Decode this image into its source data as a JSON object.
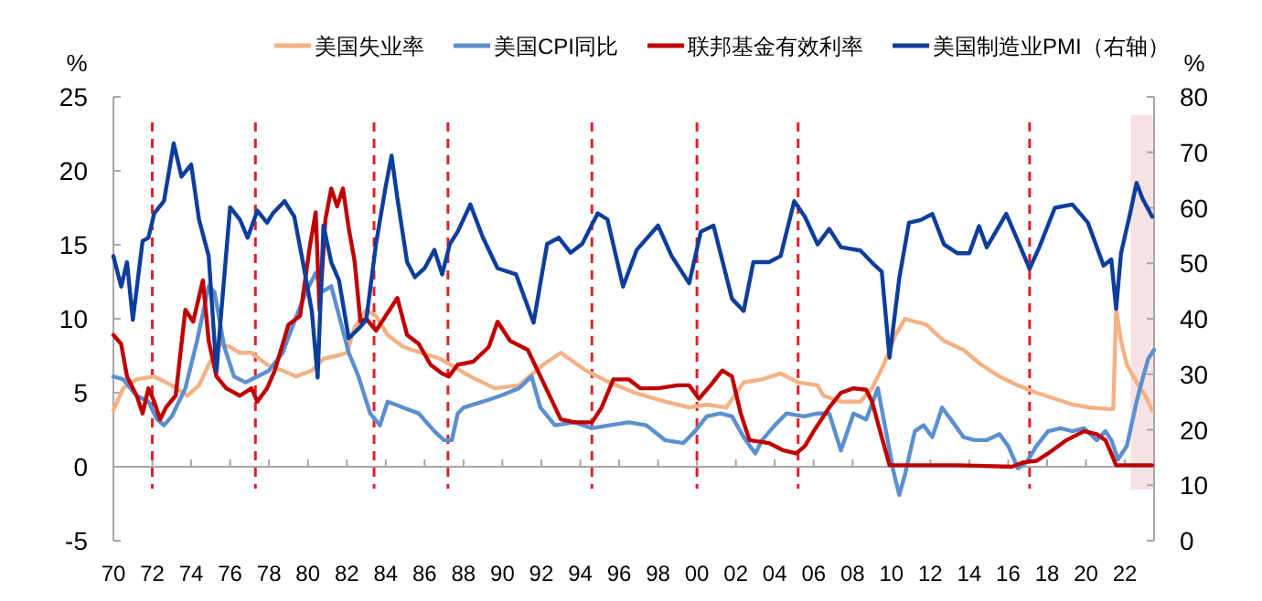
{
  "chart_data": {
    "type": "line",
    "ylabel": "%",
    "y2label": "%",
    "legend": "top",
    "xlim": [
      1970,
      2023.5
    ],
    "xticks": [
      {
        "value": 1970,
        "label": "70"
      },
      {
        "value": 1972,
        "label": "72"
      },
      {
        "value": 1974,
        "label": "74"
      },
      {
        "value": 1976,
        "label": "76"
      },
      {
        "value": 1978,
        "label": "78"
      },
      {
        "value": 1980,
        "label": "80"
      },
      {
        "value": 1982,
        "label": "82"
      },
      {
        "value": 1984,
        "label": "84"
      },
      {
        "value": 1986,
        "label": "86"
      },
      {
        "value": 1988,
        "label": "88"
      },
      {
        "value": 1990,
        "label": "90"
      },
      {
        "value": 1992,
        "label": "92"
      },
      {
        "value": 1994,
        "label": "94"
      },
      {
        "value": 1996,
        "label": "96"
      },
      {
        "value": 1998,
        "label": "98"
      },
      {
        "value": 2000,
        "label": "00"
      },
      {
        "value": 2002,
        "label": "02"
      },
      {
        "value": 2004,
        "label": "04"
      },
      {
        "value": 2006,
        "label": "06"
      },
      {
        "value": 2008,
        "label": "08"
      },
      {
        "value": 2010,
        "label": "10"
      },
      {
        "value": 2012,
        "label": "12"
      },
      {
        "value": 2014,
        "label": "14"
      },
      {
        "value": 2016,
        "label": "16"
      },
      {
        "value": 2018,
        "label": "18"
      },
      {
        "value": 2020,
        "label": "20"
      },
      {
        "value": 2022,
        "label": "22"
      }
    ],
    "ylim": [
      -5,
      25
    ],
    "yticks": [
      -5,
      0,
      5,
      10,
      15,
      20,
      25
    ],
    "y2lim": [
      0,
      80
    ],
    "y2ticks": [
      0,
      10,
      20,
      30,
      40,
      50,
      60,
      70,
      80
    ],
    "ref_lines": [
      {
        "axis": "x",
        "value": 1972.0,
        "color": "#e0202a",
        "line_style": "dashed"
      },
      {
        "axis": "x",
        "value": 1977.3,
        "color": "#e0202a",
        "line_style": "dashed"
      },
      {
        "axis": "x",
        "value": 1983.4,
        "color": "#e0202a",
        "line_style": "dashed"
      },
      {
        "axis": "x",
        "value": 1987.2,
        "color": "#e0202a",
        "line_style": "dashed"
      },
      {
        "axis": "x",
        "value": 1994.6,
        "color": "#e0202a",
        "line_style": "dashed"
      },
      {
        "axis": "x",
        "value": 2000.0,
        "color": "#e0202a",
        "line_style": "dashed"
      },
      {
        "axis": "x",
        "value": 2005.2,
        "color": "#e0202a",
        "line_style": "dashed"
      },
      {
        "axis": "x",
        "value": 2017.1,
        "color": "#e0202a",
        "line_style": "dashed"
      }
    ],
    "bands": [
      {
        "axis": "x",
        "from": 2022.3,
        "to": 2023.5,
        "color": "#f6e1e4"
      }
    ],
    "series": [
      {
        "name": "美国失业率",
        "color": "#f4b183",
        "x": [
          1970,
          1970.5,
          1971.2,
          1972.1,
          1973,
          1973.8,
          1974.4,
          1974.9,
          1975.5,
          1976,
          1976.5,
          1977.1,
          1977.9,
          1978.7,
          1979.4,
          1980.2,
          1980.8,
          1981.5,
          1982,
          1982.4,
          1983,
          1983.5,
          1984.1,
          1984.9,
          1985.8,
          1986.8,
          1988.35,
          1989.6,
          1990.85,
          1992.1,
          1993.0,
          1994.3,
          1995.5,
          1996.8,
          1998.35,
          1999.6,
          2000.5,
          2001.5,
          2002.4,
          2003.35,
          2004.3,
          2005.2,
          2006.2,
          2006.5,
          2007.4,
          2008.4,
          2009,
          2009.6,
          2010.2,
          2010.7,
          2011.2,
          2011.8,
          2012.7,
          2013.7,
          2014.6,
          2015.55,
          2016.5,
          2017.45,
          2018.4,
          2019.3,
          2020.2,
          2021.2,
          2021.4,
          2021.55,
          2021.8,
          2022.1,
          2022.6,
          2023.05,
          2023.4
        ],
        "values": [
          3.8,
          5.3,
          5.9,
          6.1,
          5.5,
          4.8,
          5.5,
          6.9,
          8.3,
          8.1,
          7.7,
          7.7,
          6.9,
          6.5,
          6.1,
          6.5,
          7.3,
          7.5,
          7.7,
          9.4,
          10.6,
          10.2,
          8.9,
          8.1,
          7.7,
          7.3,
          6.1,
          5.3,
          5.5,
          6.9,
          7.7,
          6.5,
          5.7,
          5.0,
          4.4,
          4.0,
          4.2,
          4.0,
          5.7,
          5.9,
          6.3,
          5.7,
          5.5,
          4.8,
          4.4,
          4.4,
          5.3,
          6.9,
          8.9,
          10.0,
          9.8,
          9.6,
          8.5,
          7.9,
          6.9,
          6.1,
          5.5,
          5.0,
          4.6,
          4.2,
          4.0,
          3.9,
          3.9,
          10.6,
          8.5,
          6.9,
          5.7,
          4.8,
          3.8
        ]
      },
      {
        "name": "美国CPI同比",
        "color": "#5b8fd0",
        "x": [
          1970,
          1970.5,
          1971.2,
          1971.8,
          1972.25,
          1972.6,
          1973,
          1973.7,
          1974.3,
          1974.9,
          1975.2,
          1975.7,
          1976.2,
          1976.8,
          1977.4,
          1978,
          1978.7,
          1979.3,
          1979.9,
          1980.4,
          1980.7,
          1981.2,
          1981.6,
          1982.1,
          1982.6,
          1983.2,
          1983.7,
          1984.1,
          1984.9,
          1985.7,
          1986.5,
          1987,
          1987.4,
          1987.7,
          1988,
          1989,
          1989.9,
          1990.85,
          1991.5,
          1991.95,
          1992.7,
          1993.7,
          1994.6,
          1995.5,
          1996.5,
          1997.4,
          1998.35,
          1999.3,
          1999.9,
          2000.5,
          2001.2,
          2001.8,
          2002.4,
          2003.0,
          2003.35,
          2004,
          2004.6,
          2005.5,
          2006.2,
          2006.8,
          2007.4,
          2008.05,
          2008.7,
          2009.3,
          2009.6,
          2010.1,
          2010.4,
          2010.7,
          2011.2,
          2011.65,
          2012.1,
          2012.6,
          2013.05,
          2013.7,
          2014.3,
          2014.9,
          2015.55,
          2016,
          2016.5,
          2016.95,
          2017.45,
          2018.05,
          2018.7,
          2019.3,
          2019.9,
          2020.55,
          2021,
          2021.3,
          2021.65,
          2022.1,
          2022.6,
          2022.9,
          2023.2,
          2023.5
        ],
        "values": [
          6.1,
          5.9,
          4.8,
          4.4,
          3.2,
          2.8,
          3.4,
          5.3,
          8.5,
          12.2,
          11.8,
          8.1,
          6.1,
          5.7,
          6.1,
          6.5,
          7.7,
          9.8,
          11.8,
          13.1,
          11.8,
          12.2,
          10.2,
          7.7,
          6.1,
          3.6,
          2.8,
          4.4,
          4.0,
          3.6,
          2.4,
          1.8,
          1.8,
          3.6,
          4.0,
          4.4,
          4.8,
          5.3,
          6.1,
          4.0,
          2.8,
          3.0,
          2.6,
          2.8,
          3.0,
          2.8,
          1.8,
          1.6,
          2.4,
          3.4,
          3.6,
          3.4,
          2.0,
          0.9,
          1.8,
          2.8,
          3.6,
          3.4,
          3.6,
          3.6,
          1.1,
          3.6,
          3.2,
          5.3,
          3.2,
          -0.3,
          -1.9,
          -0.5,
          2.4,
          2.8,
          2.0,
          4.0,
          3.2,
          2.0,
          1.8,
          1.8,
          2.2,
          1.4,
          -0.1,
          0.3,
          1.4,
          2.4,
          2.6,
          2.4,
          2.6,
          1.8,
          2.4,
          1.8,
          0.5,
          1.4,
          4.4,
          5.9,
          7.3,
          7.9
        ]
      },
      {
        "name": "联邦基金有效利率",
        "color": "#c00000",
        "x": [
          1970,
          1970.4,
          1970.7,
          1971.2,
          1971.5,
          1971.8,
          1972.1,
          1972.4,
          1972.7,
          1973.2,
          1973.7,
          1974.1,
          1974.6,
          1974.9,
          1975.3,
          1975.8,
          1976.5,
          1977.1,
          1977.4,
          1977.9,
          1978.3,
          1979,
          1979.6,
          1980.1,
          1980.4,
          1980.6,
          1980.9,
          1981.2,
          1981.5,
          1981.8,
          1982.1,
          1982.4,
          1982.7,
          1983,
          1983.5,
          1984,
          1984.6,
          1985.1,
          1985.7,
          1986.3,
          1986.9,
          1987.25,
          1987.7,
          1988.5,
          1989.3,
          1989.75,
          1990.4,
          1991.3,
          1992.1,
          1993.0,
          1993.7,
          1994.6,
          1995.1,
          1995.7,
          1996.5,
          1997.1,
          1998.0,
          1999,
          1999.6,
          2000.1,
          2000.7,
          2001.3,
          2001.8,
          2002.25,
          2002.7,
          2003.7,
          2004.45,
          2005.1,
          2005.55,
          2006,
          2006.8,
          2007.4,
          2008.05,
          2008.7,
          2009,
          2009.5,
          2009.9,
          2010.9,
          2013.4,
          2016.2,
          2016.8,
          2017.45,
          2018.05,
          2019,
          2019.9,
          2020.55,
          2021,
          2021.3,
          2021.55,
          2023.05,
          2023.4
        ],
        "values": [
          8.9,
          8.3,
          6.1,
          4.8,
          3.6,
          5.3,
          4.4,
          3.2,
          4.0,
          4.8,
          10.6,
          9.8,
          12.6,
          8.5,
          6.1,
          5.3,
          4.8,
          5.3,
          4.4,
          5.3,
          6.5,
          9.6,
          10.2,
          14.9,
          17.2,
          10.6,
          16.7,
          18.8,
          17.6,
          18.8,
          16.1,
          13.9,
          9.8,
          10.0,
          9.2,
          10.2,
          11.4,
          8.9,
          8.3,
          6.9,
          6.3,
          6.1,
          6.9,
          7.1,
          8.1,
          9.8,
          8.5,
          7.9,
          5.7,
          3.2,
          3.0,
          3.0,
          4.0,
          5.9,
          5.9,
          5.3,
          5.3,
          5.5,
          5.5,
          4.6,
          5.5,
          6.5,
          6.1,
          3.6,
          1.8,
          1.6,
          1.1,
          0.9,
          1.4,
          2.4,
          4.0,
          5.0,
          5.3,
          5.2,
          4.4,
          2.0,
          0.1,
          0.1,
          0.1,
          0,
          0.3,
          0.4,
          0.9,
          1.8,
          2.4,
          2.2,
          1.8,
          0.9,
          0.1,
          0.1,
          0.1
        ]
      },
      {
        "name": "美国制造业PMI（右轴）",
        "color": "#0e3e9b",
        "axis": "y2",
        "x": [
          1970,
          1970.4,
          1970.7,
          1971,
          1971.5,
          1971.8,
          1972.1,
          1972.6,
          1973.1,
          1973.5,
          1974,
          1974.4,
          1974.9,
          1975.3,
          1975.5,
          1976,
          1976.5,
          1976.9,
          1977.4,
          1977.9,
          1978.2,
          1978.8,
          1979.3,
          1979.8,
          1980.2,
          1980.5,
          1980.8,
          1981.2,
          1981.6,
          1982.1,
          1982.6,
          1983,
          1983.5,
          1984,
          1984.3,
          1984.6,
          1985.1,
          1985.5,
          1986,
          1986.5,
          1986.9,
          1987.3,
          1987.7,
          1988.35,
          1989,
          1989.75,
          1990.7,
          1991.6,
          1992.3,
          1992.9,
          1993.5,
          1994.1,
          1994.9,
          1995.4,
          1996.2,
          1996.9,
          1998,
          1998.7,
          1999.6,
          2000.2,
          2000.85,
          2001.8,
          2002.4,
          2002.9,
          2003.7,
          2004.3,
          2005,
          2005.55,
          2006.2,
          2006.8,
          2007.4,
          2008.4,
          2009.15,
          2009.5,
          2009.9,
          2010.4,
          2010.9,
          2011.5,
          2012.1,
          2012.7,
          2013.4,
          2014,
          2014.5,
          2014.9,
          2015.9,
          2016.5,
          2017.1,
          2017.6,
          2018.4,
          2019.3,
          2020.1,
          2020.9,
          2021.3,
          2021.55,
          2021.8,
          2022.3,
          2022.6,
          2022.9,
          2023.4
        ],
        "values": [
          51.3,
          45.8,
          50.2,
          39.8,
          54,
          54.6,
          59,
          61.2,
          71.6,
          65.6,
          67.8,
          57.9,
          51.3,
          30.5,
          39.3,
          60.1,
          57.9,
          54.6,
          59.5,
          57.3,
          59,
          61.2,
          58.4,
          49.1,
          41.4,
          29.4,
          56.8,
          50.2,
          46.9,
          36.5,
          38.2,
          39.8,
          53.5,
          63.9,
          69.4,
          61.7,
          50.2,
          47.5,
          49.1,
          52.4,
          48,
          53.5,
          55.7,
          60.6,
          54.6,
          49.1,
          48,
          39.3,
          53.5,
          54.6,
          51.9,
          53.5,
          59,
          57.9,
          45.8,
          52.4,
          56.8,
          51.3,
          46.4,
          55.7,
          56.8,
          43.6,
          41.4,
          50.2,
          50.2,
          51.3,
          61.2,
          58.4,
          53.4,
          56.2,
          52.9,
          52.3,
          49.6,
          48.5,
          33,
          47.3,
          57.3,
          57.8,
          58.9,
          53.4,
          51.8,
          51.8,
          56.7,
          52.9,
          58.9,
          54,
          49,
          52.9,
          60,
          60.6,
          57.3,
          49.6,
          50.7,
          41.8,
          51.8,
          59.5,
          64.5,
          61.7,
          58.4
        ]
      }
    ]
  }
}
